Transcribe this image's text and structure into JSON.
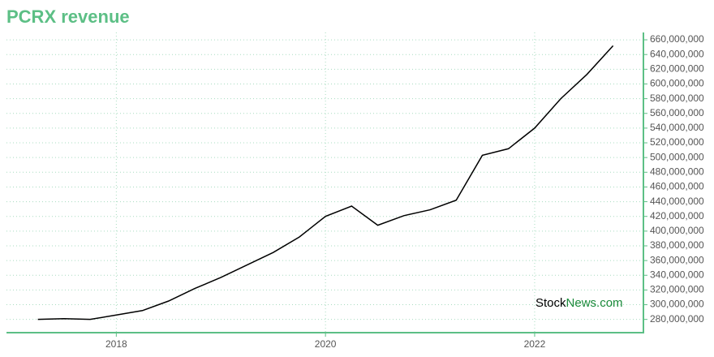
{
  "chart_data": {
    "type": "line",
    "title": "PCRX revenue",
    "watermark": [
      "Stock",
      "News.com"
    ],
    "x": [
      2017.25,
      2017.5,
      2017.75,
      2018.0,
      2018.25,
      2018.5,
      2018.75,
      2019.0,
      2019.25,
      2019.5,
      2019.75,
      2020.0,
      2020.25,
      2020.5,
      2020.75,
      2021.0,
      2021.25,
      2021.5,
      2021.75,
      2022.0,
      2022.25,
      2022.5,
      2022.75
    ],
    "series": [
      {
        "name": "PCRX revenue",
        "color": "#000000",
        "values": [
          280000000,
          281000000,
          280000000,
          286000000,
          292000000,
          305000000,
          322000000,
          337000000,
          354000000,
          371000000,
          392000000,
          420000000,
          434000000,
          408000000,
          421000000,
          429000000,
          442000000,
          503000000,
          512000000,
          540000000,
          580000000,
          613000000,
          652000000
        ]
      }
    ],
    "xlim": [
      2016.95,
      2023.04
    ],
    "xticks": [
      2018,
      2020,
      2022
    ],
    "ylim": [
      262000000,
      670000000
    ],
    "yticks": [
      {
        "value": 280000000,
        "label": "280,000,000"
      },
      {
        "value": 300000000,
        "label": "300,000,000"
      },
      {
        "value": 320000000,
        "label": "320,000,000"
      },
      {
        "value": 340000000,
        "label": "340,000,000"
      },
      {
        "value": 360000000,
        "label": "360,000,000"
      },
      {
        "value": 380000000,
        "label": "380,000,000"
      },
      {
        "value": 400000000,
        "label": "400,000,000"
      },
      {
        "value": 420000000,
        "label": "420,000,000"
      },
      {
        "value": 440000000,
        "label": "440,000,000"
      },
      {
        "value": 460000000,
        "label": "460,000,000"
      },
      {
        "value": 480000000,
        "label": "480,000,000"
      },
      {
        "value": 500000000,
        "label": "500,000,000"
      },
      {
        "value": 520000000,
        "label": "520,000,000"
      },
      {
        "value": 540000000,
        "label": "540,000,000"
      },
      {
        "value": 560000000,
        "label": "560,000,000"
      },
      {
        "value": 580000000,
        "label": "580,000,000"
      },
      {
        "value": 600000000,
        "label": "600,000,000"
      },
      {
        "value": 620000000,
        "label": "620,000,000"
      },
      {
        "value": 640000000,
        "label": "640,000,000"
      },
      {
        "value": 660000000,
        "label": "660,000,000"
      }
    ],
    "grid": true,
    "axis_color": "#5cbf85",
    "grid_color": "#a8dcc0"
  }
}
